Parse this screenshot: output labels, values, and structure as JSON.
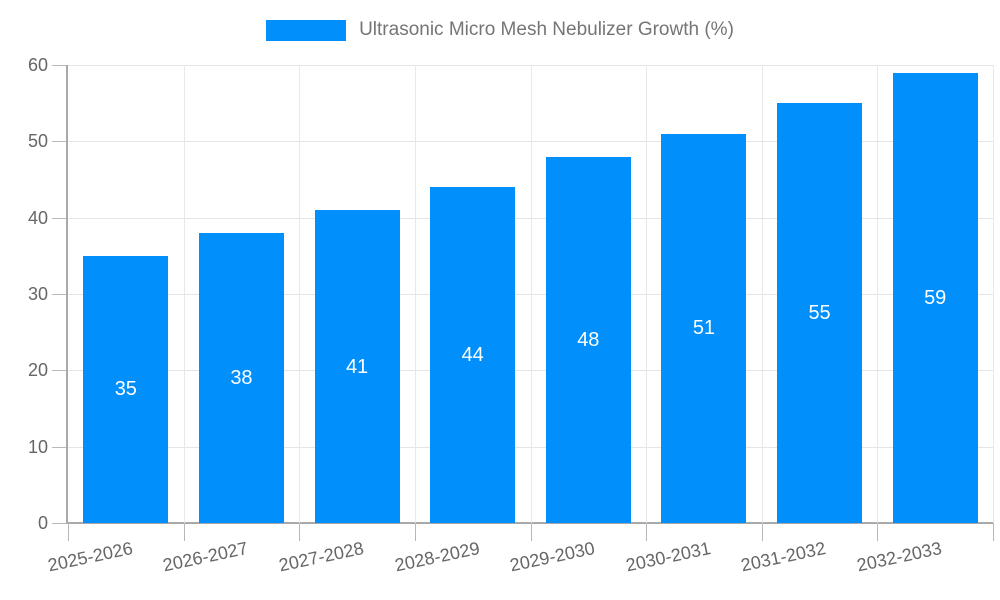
{
  "legend": {
    "items": [
      {
        "label": "Ultrasonic Micro Mesh Nebulizer Growth (%)",
        "swatch_color": "#008FFB"
      }
    ],
    "position": "top"
  },
  "chart_data": {
    "type": "bar",
    "title": "Ultrasonic Micro Mesh Nebulizer Growth (%)",
    "categories": [
      "2025-2026",
      "2026-2027",
      "2027-2028",
      "2028-2029",
      "2029-2030",
      "2030-2031",
      "2031-2032",
      "2032-2033"
    ],
    "series": [
      {
        "name": "Ultrasonic Micro Mesh Nebulizer Growth (%)",
        "values": [
          35,
          38,
          41,
          44,
          48,
          51,
          55,
          59
        ]
      }
    ],
    "xlabel": "",
    "ylabel": "",
    "ylim": [
      0,
      60
    ],
    "yticks": [
      0,
      10,
      20,
      30,
      40,
      50,
      60
    ],
    "grid": true,
    "legend_position": "top",
    "colors": {
      "bar": "#008FFB",
      "data_label": "#FFFFFF",
      "axis_label": "#666666",
      "legend_text": "#757575",
      "gridline_h": "#E5E5E5",
      "gridline_v": "#E8E8E8",
      "axis_line": "#A9A9A9",
      "tick": "#B8B8B8",
      "background": "#FFFFFF"
    }
  }
}
